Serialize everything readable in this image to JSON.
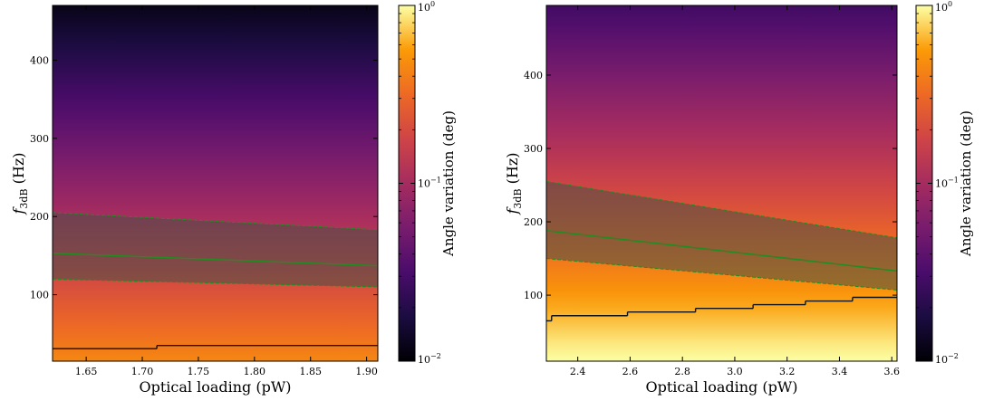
{
  "chart_data": [
    {
      "type": "heatmap",
      "xlabel": "Optical loading (pW)",
      "ylabel": "f",
      "ylabel_sub": "3dB",
      "ylabel_unit": " (Hz)",
      "xlim": [
        1.62,
        1.91
      ],
      "ylim": [
        15,
        470
      ],
      "xticks": [
        "1.65",
        "1.70",
        "1.75",
        "1.80",
        "1.85",
        "1.90"
      ],
      "xtick_values": [
        1.65,
        1.7,
        1.75,
        1.8,
        1.85,
        1.9
      ],
      "yticks": [
        "100",
        "200",
        "300",
        "400"
      ],
      "ytick_values": [
        100,
        200,
        300,
        400
      ],
      "colorbar": {
        "label": "Angle variation (deg)",
        "scale": "log",
        "range": [
          0.01,
          1
        ],
        "ticks": [
          "10",
          "10",
          "10"
        ],
        "tick_exps": [
          "0",
          "−1",
          "−2"
        ],
        "tick_values": [
          1,
          0.1,
          0.01
        ]
      },
      "colormap": "inferno",
      "heatmap_model": {
        "log_value_at_ymin": -0.35,
        "log_value_at_ymax": -1.92
      },
      "central_line": {
        "color": "#228B22",
        "x": [
          1.62,
          1.91
        ],
        "y": [
          153,
          137
        ]
      },
      "band": {
        "color": "#228B22",
        "upper": [
          205,
          183
        ],
        "lower": [
          120,
          110
        ]
      },
      "contour_steps": [
        {
          "x0": 1.62,
          "x1": 1.713,
          "y": 31
        },
        {
          "x0": 1.713,
          "x1": 1.91,
          "y": 35
        }
      ]
    },
    {
      "type": "heatmap",
      "xlabel": "Optical loading (pW)",
      "ylabel": "f",
      "ylabel_sub": "3dB",
      "ylabel_unit": " (Hz)",
      "xlim": [
        2.28,
        3.62
      ],
      "ylim": [
        10,
        495
      ],
      "xticks": [
        "2.4",
        "2.6",
        "2.8",
        "3.0",
        "3.2",
        "3.4",
        "3.6"
      ],
      "xtick_values": [
        2.4,
        2.6,
        2.8,
        3.0,
        3.2,
        3.4,
        3.6
      ],
      "yticks": [
        "100",
        "200",
        "300",
        "400"
      ],
      "ytick_values": [
        100,
        200,
        300,
        400
      ],
      "colorbar": {
        "label": "Angle variation (deg)",
        "scale": "log",
        "range": [
          0.01,
          1
        ],
        "ticks": [
          "10",
          "10",
          "10"
        ],
        "tick_exps": [
          "0",
          "−1",
          "−2"
        ],
        "tick_values": [
          1,
          0.1,
          0.01
        ]
      },
      "colormap": "inferno",
      "heatmap_model": {
        "log_value_at_ymin": 0.02,
        "log_value_at_ymax": -1.55
      },
      "central_line": {
        "color": "#228B22",
        "x": [
          2.28,
          3.62
        ],
        "y": [
          188,
          133
        ]
      },
      "band": {
        "color": "#228B22",
        "upper": [
          255,
          178
        ],
        "lower": [
          150,
          107
        ]
      },
      "contour_steps": [
        {
          "x0": 2.28,
          "x1": 2.3,
          "y": 65
        },
        {
          "x0": 2.3,
          "x1": 2.59,
          "y": 72
        },
        {
          "x0": 2.59,
          "x1": 2.85,
          "y": 77
        },
        {
          "x0": 2.85,
          "x1": 3.07,
          "y": 82
        },
        {
          "x0": 3.07,
          "x1": 3.27,
          "y": 87
        },
        {
          "x0": 3.27,
          "x1": 3.45,
          "y": 92
        },
        {
          "x0": 3.45,
          "x1": 3.62,
          "y": 97
        }
      ]
    }
  ]
}
